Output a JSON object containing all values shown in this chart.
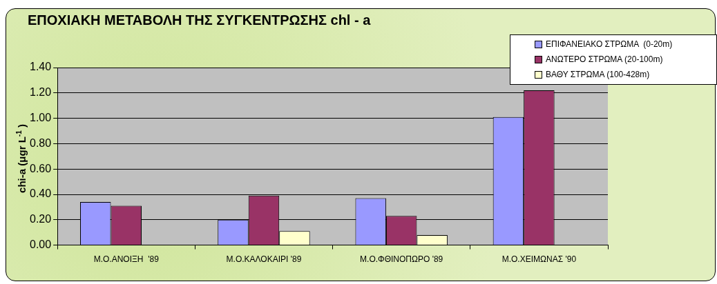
{
  "chart_data": {
    "type": "bar",
    "title": "ΕΠΟΧΙΑΚΗ ΜΕΤΑΒΟΛΗ ΤΗΣ ΣΥΓΚΕΝΤΡΩΣΗΣ chl - a",
    "ylabel": "chi-a  (μgr L$^{-1}$ )",
    "categories": [
      "Μ.Ο.ΑΝΟΙΞΗ  '89",
      "Μ.Ο.ΚΑΛΟΚΑΙΡΙ '89",
      "Μ.Ο.ΦΘΙΝΟΠΩΡΟ '89",
      "Μ.Ο.ΧΕΙΜΩΝΑΣ '90"
    ],
    "series": [
      {
        "name": "ΕΠΙΦΑΝΕΙΑΚΟ ΣΤΡΩΜΑ  (0-20m)",
        "color": "#9999ff",
        "values": [
          0.34,
          0.2,
          0.37,
          1.01
        ]
      },
      {
        "name": "ΑΝΩΤΕΡΟ ΣΤΡΩΜΑ (20-100m)",
        "color": "#993366",
        "values": [
          0.31,
          0.39,
          0.23,
          1.22
        ]
      },
      {
        "name": "ΒΑΘΥ ΣΤΡΩΜΑ (100-428m)",
        "color": "#ffffcc",
        "values": [
          null,
          0.11,
          0.08,
          null
        ]
      }
    ],
    "ylim": [
      0,
      1.4
    ],
    "yticks": [
      {
        "value": 0,
        "label": "0.00"
      },
      {
        "value": 0.2,
        "label": "0.20"
      },
      {
        "value": 0.4,
        "label": "0.40"
      },
      {
        "value": 0.6,
        "label": "0.60"
      },
      {
        "value": 0.8,
        "label": "0.80"
      },
      {
        "value": 1.0,
        "label": "1.00"
      },
      {
        "value": 1.2,
        "label": "1.20"
      },
      {
        "value": 1.4,
        "label": "1.40"
      }
    ],
    "grid": "y",
    "legend": "top right"
  }
}
